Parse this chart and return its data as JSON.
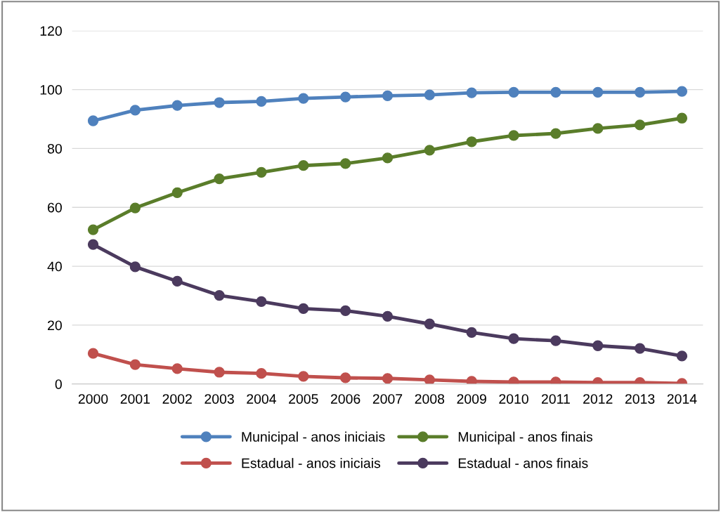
{
  "chart_data": {
    "type": "line",
    "categories": [
      "2000",
      "2001",
      "2002",
      "2003",
      "2004",
      "2005",
      "2006",
      "2007",
      "2008",
      "2009",
      "2010",
      "2011",
      "2012",
      "2013",
      "2014"
    ],
    "series": [
      {
        "name": "Municipal - anos iniciais",
        "color": "#4f81bd",
        "values": [
          89.4,
          93,
          94.6,
          95.6,
          96,
          97,
          97.5,
          97.9,
          98.2,
          98.9,
          99.1,
          99.1,
          99.1,
          99.1,
          99.4
        ]
      },
      {
        "name": "Estadual - anos iniciais",
        "color": "#c0504d",
        "values": [
          10.4,
          6.6,
          5.2,
          4,
          3.6,
          2.6,
          2.1,
          1.9,
          1.4,
          0.9,
          0.7,
          0.7,
          0.5,
          0.5,
          0.2
        ]
      },
      {
        "name": "Municipal - anos finais",
        "color": "#5a7d2a",
        "values": [
          52.4,
          59.8,
          65,
          69.7,
          71.9,
          74.2,
          74.9,
          76.8,
          79.4,
          82.3,
          84.4,
          85.1,
          86.8,
          88,
          90.3
        ]
      },
      {
        "name": "Estadual - anos finais",
        "color": "#4b3a5e",
        "values": [
          47.4,
          39.8,
          34.9,
          30.1,
          28,
          25.6,
          24.9,
          23,
          20.4,
          17.5,
          15.4,
          14.7,
          13,
          12.1,
          9.5
        ]
      }
    ],
    "ylim": [
      0,
      120
    ],
    "yticks": [
      0,
      20,
      40,
      60,
      80,
      100,
      120
    ],
    "grid": "y",
    "legend": "bottom",
    "marker": "circle",
    "line_style": "solid"
  }
}
